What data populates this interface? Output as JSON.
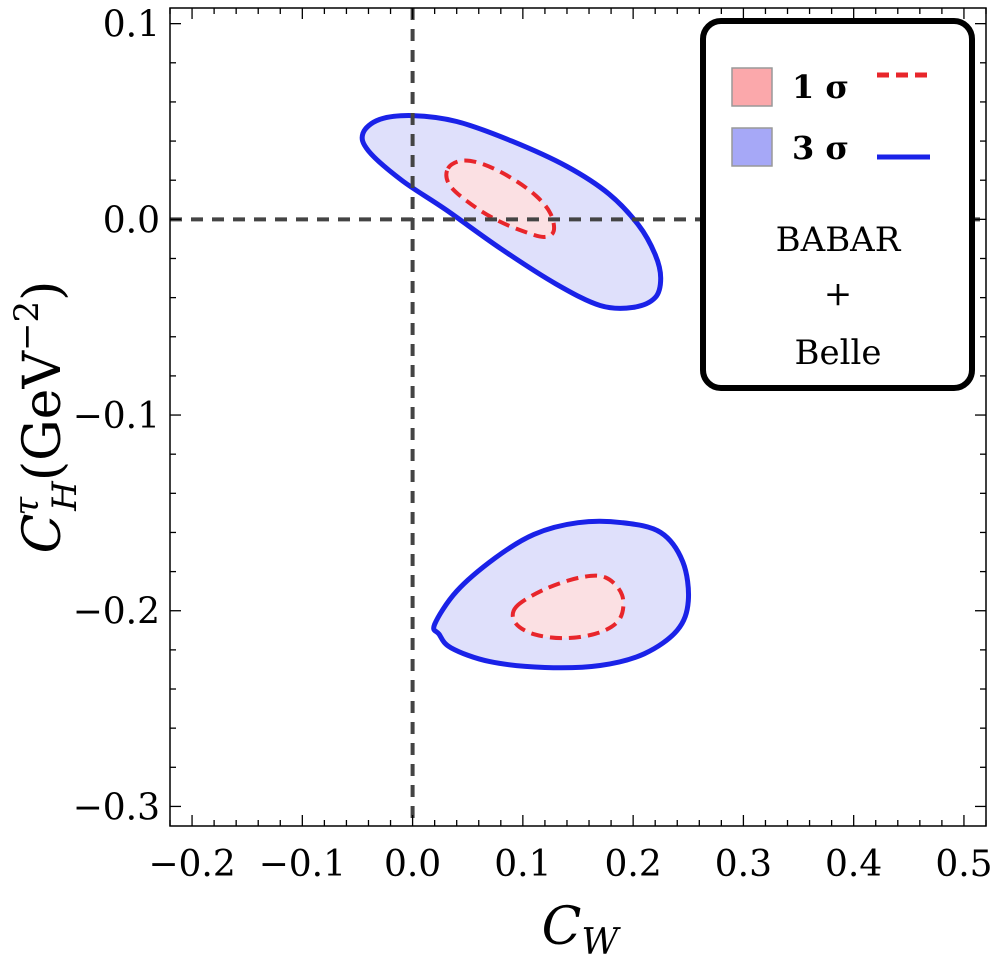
{
  "chart_data": {
    "type": "contour",
    "xlabel": "C",
    "xlabel_sub": "W",
    "ylabel": "C",
    "ylabel_sup": "τ",
    "ylabel_sub": "H",
    "ylabel_unit": "(GeV",
    "ylabel_unit_exp": "−2",
    "ylabel_unit_close": ")",
    "xlim": [
      -0.22,
      0.52
    ],
    "ylim": [
      -0.31,
      0.108
    ],
    "x_ticks": [
      -0.2,
      -0.1,
      0.0,
      0.1,
      0.2,
      0.3,
      0.4,
      0.5
    ],
    "x_tick_labels": [
      "−0.2",
      "−0.1",
      "0.0",
      "0.1",
      "0.2",
      "0.3",
      "0.4",
      "0.5"
    ],
    "y_ticks": [
      0.1,
      0.0,
      -0.1,
      -0.2,
      -0.3
    ],
    "y_tick_labels": [
      "0.1",
      "0.0",
      "−0.1",
      "−0.2",
      "−0.3"
    ],
    "reference_lines": {
      "x": 0.0,
      "y": 0.0,
      "style": "dashed"
    },
    "series": [
      {
        "name": "1 σ",
        "line_style": "dashed",
        "color": "#e8262b",
        "fill": "#fbe0e3",
        "regions": [
          [
            [
              0.032,
              0.026
            ],
            [
              0.045,
              0.03
            ],
            [
              0.065,
              0.028
            ],
            [
              0.09,
              0.021
            ],
            [
              0.112,
              0.012
            ],
            [
              0.125,
              0.003
            ],
            [
              0.128,
              -0.006
            ],
            [
              0.119,
              -0.009
            ],
            [
              0.1,
              -0.006
            ],
            [
              0.075,
              0.0
            ],
            [
              0.05,
              0.009
            ],
            [
              0.033,
              0.018
            ]
          ],
          [
            [
              0.094,
              -0.198
            ],
            [
              0.12,
              -0.189
            ],
            [
              0.152,
              -0.183
            ],
            [
              0.175,
              -0.183
            ],
            [
              0.19,
              -0.192
            ],
            [
              0.188,
              -0.204
            ],
            [
              0.17,
              -0.211
            ],
            [
              0.14,
              -0.214
            ],
            [
              0.11,
              -0.212
            ],
            [
              0.093,
              -0.206
            ]
          ]
        ]
      },
      {
        "name": "3 σ",
        "line_style": "solid",
        "color": "#1a22e8",
        "fill": "#dfe0fb",
        "regions": [
          [
            [
              -0.045,
              0.044
            ],
            [
              -0.03,
              0.051
            ],
            [
              0.0,
              0.053
            ],
            [
              0.04,
              0.05
            ],
            [
              0.09,
              0.04
            ],
            [
              0.14,
              0.027
            ],
            [
              0.178,
              0.013
            ],
            [
              0.205,
              -0.003
            ],
            [
              0.22,
              -0.018
            ],
            [
              0.225,
              -0.03
            ],
            [
              0.22,
              -0.04
            ],
            [
              0.2,
              -0.045
            ],
            [
              0.17,
              -0.044
            ],
            [
              0.13,
              -0.033
            ],
            [
              0.08,
              -0.015
            ],
            [
              0.03,
              0.005
            ],
            [
              -0.01,
              0.02
            ],
            [
              -0.04,
              0.035
            ]
          ],
          [
            [
              0.02,
              -0.207
            ],
            [
              0.04,
              -0.19
            ],
            [
              0.075,
              -0.173
            ],
            [
              0.11,
              -0.161
            ],
            [
              0.15,
              -0.155
            ],
            [
              0.19,
              -0.155
            ],
            [
              0.225,
              -0.16
            ],
            [
              0.245,
              -0.175
            ],
            [
              0.25,
              -0.195
            ],
            [
              0.24,
              -0.21
            ],
            [
              0.21,
              -0.222
            ],
            [
              0.17,
              -0.228
            ],
            [
              0.12,
              -0.229
            ],
            [
              0.07,
              -0.226
            ],
            [
              0.035,
              -0.219
            ],
            [
              0.024,
              -0.212
            ]
          ]
        ]
      }
    ],
    "legend": {
      "position": "top-right",
      "entries": [
        {
          "label": "1 σ",
          "swatch_color": "#fba8ab",
          "line_color": "#e8262b",
          "line_style": "dashed"
        },
        {
          "label": "3 σ",
          "swatch_color": "#a6a8f7",
          "line_color": "#1a22e8",
          "line_style": "solid"
        }
      ],
      "note_lines": [
        "BABAR",
        "+",
        "Belle"
      ]
    }
  }
}
